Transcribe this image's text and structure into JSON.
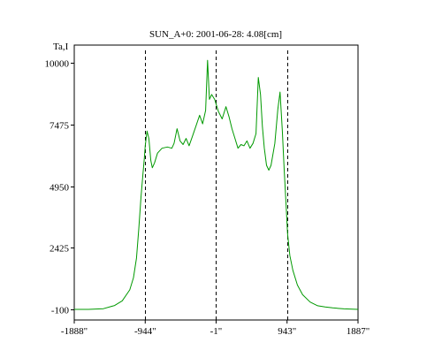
{
  "chart_data": {
    "type": "line",
    "title": "SUN_A+0: 2001-06-28: 4.08[cm]",
    "ylabel": "Ta,I",
    "xlabel": "",
    "xlim": [
      -1888,
      1887
    ],
    "ylim": [
      -100,
      10000
    ],
    "x_ticks": [
      {
        "value": -1888,
        "label": "-1888\""
      },
      {
        "value": -944,
        "label": "-944\""
      },
      {
        "value": -1,
        "label": "-1\""
      },
      {
        "value": 943,
        "label": "943\""
      },
      {
        "value": 1887,
        "label": "1887\""
      }
    ],
    "y_ticks": [
      {
        "value": -100,
        "label": "-100"
      },
      {
        "value": 2425,
        "label": "2425"
      },
      {
        "value": 4950,
        "label": "4950"
      },
      {
        "value": 7475,
        "label": "7475"
      },
      {
        "value": 10000,
        "label": "10000"
      }
    ],
    "reference_lines_x": [
      -944,
      -1,
      943
    ],
    "grid": false,
    "series": [
      {
        "color": "#009900",
        "points": [
          [
            -1888,
            -100
          ],
          [
            -1700,
            -100
          ],
          [
            -1500,
            -70
          ],
          [
            -1350,
            60
          ],
          [
            -1250,
            250
          ],
          [
            -1150,
            700
          ],
          [
            -1100,
            1200
          ],
          [
            -1060,
            2000
          ],
          [
            -1030,
            3200
          ],
          [
            -1000,
            4500
          ],
          [
            -975,
            5400
          ],
          [
            -955,
            6100
          ],
          [
            -944,
            6600
          ],
          [
            -920,
            7200
          ],
          [
            -895,
            6900
          ],
          [
            -870,
            6000
          ],
          [
            -850,
            5700
          ],
          [
            -820,
            5900
          ],
          [
            -780,
            6300
          ],
          [
            -720,
            6500
          ],
          [
            -650,
            6550
          ],
          [
            -590,
            6500
          ],
          [
            -560,
            6700
          ],
          [
            -520,
            7300
          ],
          [
            -480,
            6800
          ],
          [
            -440,
            6650
          ],
          [
            -400,
            6900
          ],
          [
            -360,
            6600
          ],
          [
            -320,
            6950
          ],
          [
            -270,
            7400
          ],
          [
            -220,
            7850
          ],
          [
            -180,
            7500
          ],
          [
            -140,
            8050
          ],
          [
            -115,
            10100
          ],
          [
            -90,
            8500
          ],
          [
            -60,
            8700
          ],
          [
            -20,
            8500
          ],
          [
            30,
            8000
          ],
          [
            80,
            7700
          ],
          [
            130,
            8200
          ],
          [
            170,
            7800
          ],
          [
            210,
            7300
          ],
          [
            250,
            6900
          ],
          [
            290,
            6500
          ],
          [
            330,
            6650
          ],
          [
            370,
            6600
          ],
          [
            410,
            6800
          ],
          [
            450,
            6500
          ],
          [
            490,
            6700
          ],
          [
            530,
            7100
          ],
          [
            560,
            9400
          ],
          [
            590,
            8700
          ],
          [
            615,
            7400
          ],
          [
            640,
            6500
          ],
          [
            670,
            5800
          ],
          [
            700,
            5600
          ],
          [
            730,
            5800
          ],
          [
            780,
            6700
          ],
          [
            820,
            8100
          ],
          [
            850,
            8800
          ],
          [
            880,
            7200
          ],
          [
            905,
            5600
          ],
          [
            930,
            4200
          ],
          [
            950,
            3000
          ],
          [
            980,
            2100
          ],
          [
            1020,
            1500
          ],
          [
            1080,
            900
          ],
          [
            1150,
            500
          ],
          [
            1250,
            200
          ],
          [
            1350,
            50
          ],
          [
            1450,
            0
          ],
          [
            1550,
            -40
          ],
          [
            1700,
            -80
          ],
          [
            1887,
            -100
          ]
        ]
      }
    ]
  }
}
